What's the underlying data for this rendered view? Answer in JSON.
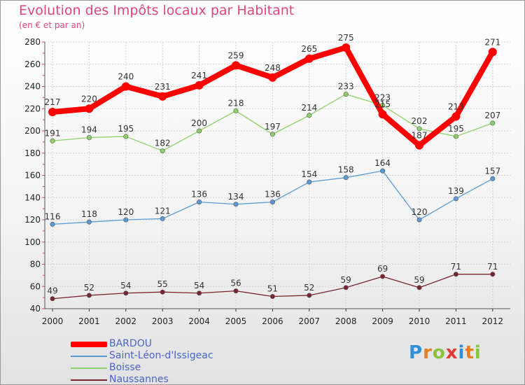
{
  "title": "Evolution des Impôts locaux par Habitant",
  "subtitle": "(en € et par an)",
  "logo": {
    "letters": [
      "P",
      "r",
      "o",
      "x",
      "i",
      "t",
      "i"
    ],
    "colors": [
      "#2f8fd6",
      "#e67e22",
      "#8ac43f",
      "#e53935",
      "#2f8fd6",
      "#e67e22",
      "#8ac43f"
    ]
  },
  "chart_data": {
    "type": "line",
    "x": [
      "2000",
      "2001",
      "2002",
      "2003",
      "2004",
      "2005",
      "2006",
      "2007",
      "2008",
      "2009",
      "2010",
      "2011",
      "2012"
    ],
    "ylim": [
      40,
      280
    ],
    "yticks": [
      40,
      60,
      80,
      100,
      120,
      140,
      160,
      180,
      200,
      220,
      240,
      260,
      280
    ],
    "grid": true,
    "legend_placement": "bottom-left",
    "series": [
      {
        "name": "BARDOU",
        "color": "#ff0000",
        "values": [
          217,
          220,
          240,
          231,
          241,
          259,
          248,
          265,
          275,
          215,
          187,
          213,
          271
        ],
        "labels": [
          "217",
          "220",
          "240",
          "231",
          "241",
          "259",
          "248",
          "265",
          "275",
          "215",
          "187",
          "213",
          "271"
        ]
      },
      {
        "name": "Saint-Léon-d'Issigeac",
        "color": "#5b9bd5",
        "values": [
          116,
          118,
          120,
          121,
          136,
          134,
          136,
          154,
          158,
          164,
          120,
          139,
          157
        ],
        "labels": [
          "116",
          "118",
          "120",
          "121",
          "136",
          "134",
          "136",
          "154",
          "158",
          "164",
          "120",
          "139",
          "157"
        ]
      },
      {
        "name": "Boisse",
        "color": "#8ed16a",
        "values": [
          191,
          194,
          195,
          182,
          200,
          218,
          197,
          214,
          233,
          223,
          202,
          195,
          207
        ],
        "labels": [
          "191",
          "194",
          "195",
          "182",
          "200",
          "218",
          "197",
          "214",
          "233",
          "223",
          "202",
          "195",
          "207"
        ]
      },
      {
        "name": "Naussannes",
        "color": "#7a2430",
        "values": [
          49,
          52,
          54,
          55,
          54,
          56,
          51,
          52,
          59,
          69,
          59,
          71,
          71
        ],
        "labels": [
          "49",
          "52",
          "54",
          "55",
          "54",
          "56",
          "51",
          "52",
          "59",
          "69",
          "59",
          "71",
          "71"
        ]
      }
    ]
  }
}
